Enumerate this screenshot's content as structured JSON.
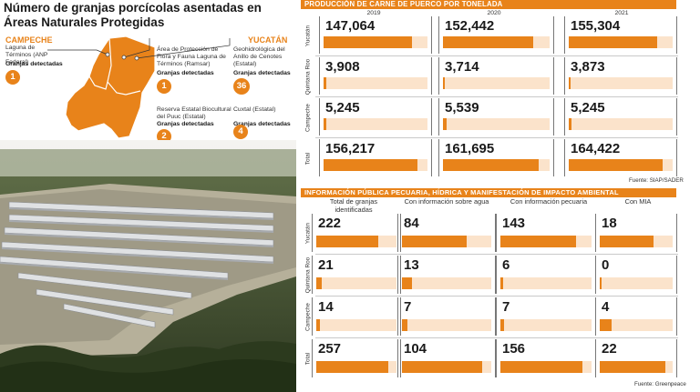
{
  "left": {
    "title": "Número de granjas porcícolas asentadas en Áreas Naturales Protegidas",
    "campeche": {
      "state": "CAMPECHE",
      "areas": [
        {
          "name": "Laguna de Términos (ANP Federal)",
          "label": "Granjas detectadas",
          "count": "1"
        }
      ]
    },
    "yucatan": {
      "state": "YUCATÁN"
    },
    "areas": [
      {
        "name": "Área de Protección de Flora y Fauna Laguna de Términos (Ramsar)",
        "label": "Granjas detectadas",
        "count": "1"
      },
      {
        "name": "Geohidrológica del Anillo de Cenotes (Estatal)",
        "label": "Granjas detectadas",
        "count": "36"
      },
      {
        "name": "Reserva Estatal Biocultural del Puuc (Estatal)",
        "label": "Granjas detectadas",
        "count": "2"
      },
      {
        "name": "Cuxtal (Estatal)",
        "label": "Granjas detectadas",
        "count": "4"
      }
    ]
  },
  "chart_data": [
    {
      "type": "bar",
      "title": "PRODUCCIÓN DE CARNE DE PUERCO POR TONELADA",
      "categories": [
        "2019",
        "2020",
        "2021"
      ],
      "rows": [
        "Yucatán",
        "Quintana Roo",
        "Campeche",
        "Total"
      ],
      "series": [
        {
          "name": "Yucatán",
          "values": [
            147064,
            152442,
            155304
          ],
          "labels": [
            "147,064",
            "152,442",
            "155,304"
          ]
        },
        {
          "name": "Quintana Roo",
          "values": [
            3908,
            3714,
            3873
          ],
          "labels": [
            "3,908",
            "3,714",
            "3,873"
          ]
        },
        {
          "name": "Campeche",
          "values": [
            5245,
            5539,
            5245
          ],
          "labels": [
            "5,245",
            "5,539",
            "5,245"
          ]
        },
        {
          "name": "Total",
          "values": [
            156217,
            161695,
            164422
          ],
          "labels": [
            "156,217",
            "161,695",
            "164,422"
          ]
        }
      ],
      "source": "Fuente: SIAP/SADER"
    },
    {
      "type": "bar",
      "title": "INFORMACIÓN PÚBLICA PECUARIA, HÍDRICA Y MANIFESTACIÓN DE IMPACTO AMBIENTAL",
      "categories": [
        "Total de granjas identificadas",
        "Con información sobre agua",
        "Con información pecuaria",
        "Con MIA"
      ],
      "rows": [
        "Yucatán",
        "Quintana Roo",
        "Campeche",
        "Total"
      ],
      "series": [
        {
          "name": "Yucatán",
          "values": [
            222,
            84,
            143,
            18
          ],
          "labels": [
            "222",
            "84",
            "143",
            "18"
          ]
        },
        {
          "name": "Quintana Roo",
          "values": [
            21,
            13,
            6,
            0
          ],
          "labels": [
            "21",
            "13",
            "6",
            "0"
          ]
        },
        {
          "name": "Campeche",
          "values": [
            14,
            7,
            7,
            4
          ],
          "labels": [
            "14",
            "7",
            "7",
            "4"
          ]
        },
        {
          "name": "Total",
          "values": [
            257,
            104,
            156,
            22
          ],
          "labels": [
            "257",
            "104",
            "156",
            "22"
          ]
        }
      ],
      "source": "Fuente: Greenpeace"
    }
  ],
  "colors": {
    "accent": "#e8831a",
    "accent_light": "#fbe3cb",
    "map_fill": "#e8831a"
  }
}
